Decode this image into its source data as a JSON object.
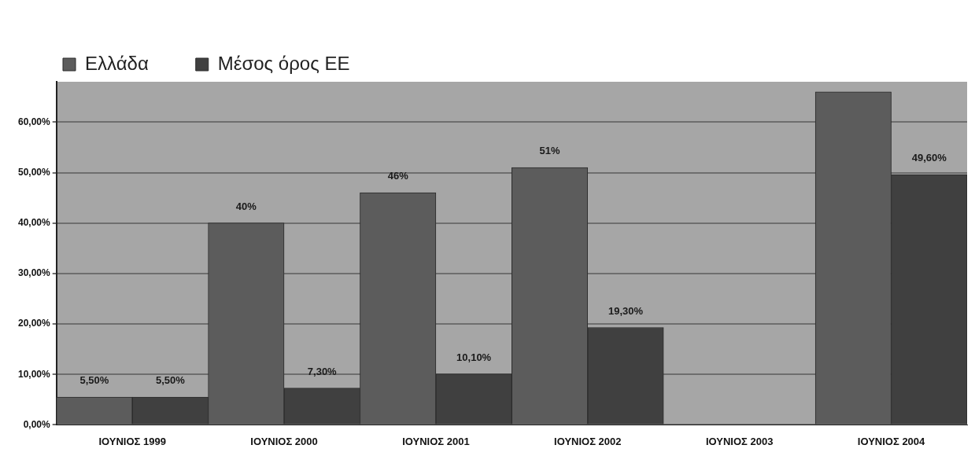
{
  "chart_data": {
    "type": "bar",
    "categories": [
      "ΙΟΥΝΙΟΣ 1999",
      "ΙΟΥΝΙΟΣ 2000",
      "ΙΟΥΝΙΟΣ 2001",
      "ΙΟΥΝΙΟΣ 2002",
      "ΙΟΥΝΙΟΣ 2003",
      "ΙΟΥΝΙΟΣ 2004"
    ],
    "series": [
      {
        "name": "Ελλάδα",
        "color": "#5c5c5c",
        "values": [
          5.5,
          40,
          46,
          51,
          0,
          66
        ],
        "value_labels": [
          "5,50%",
          "40%",
          "46%",
          "51%",
          null,
          null
        ]
      },
      {
        "name": "Μέσος όρος ΕΕ",
        "color": "#404040",
        "values": [
          5.5,
          7.3,
          10.1,
          19.3,
          0,
          49.6
        ],
        "value_labels": [
          "5,50%",
          "7,30%",
          "10,10%",
          "19,30%",
          null,
          "49,60%"
        ]
      }
    ],
    "ylim": [
      0,
      68
    ],
    "yticks": [
      {
        "value": 0,
        "label": "0,00%"
      },
      {
        "value": 10,
        "label": "10,00%"
      },
      {
        "value": 20,
        "label": "20,00%"
      },
      {
        "value": 30,
        "label": "30,00%"
      },
      {
        "value": 40,
        "label": "40,00%"
      },
      {
        "value": 50,
        "label": "50,00%"
      },
      {
        "value": 60,
        "label": "60,00%"
      }
    ],
    "grid": "y",
    "legend": "top left"
  }
}
